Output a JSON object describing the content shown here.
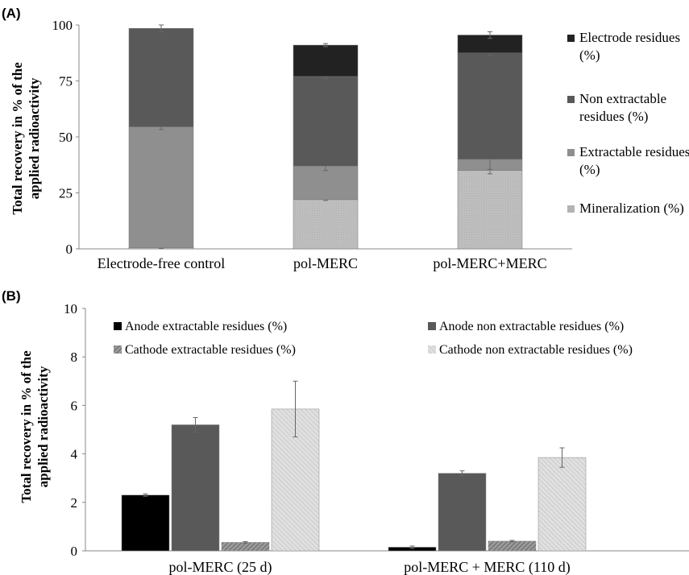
{
  "chart_data": [
    {
      "panel": "(A)",
      "type": "bar",
      "stacked": true,
      "ylabel_lines": [
        "Total recovery  in % of the",
        "applied radioactivity"
      ],
      "ylim": [
        0,
        100
      ],
      "yticks": [
        "0",
        "25",
        "50",
        "75",
        "100"
      ],
      "ytick_values": [
        0,
        25,
        50,
        75,
        100
      ],
      "categories": [
        "Electrode-free control",
        "pol-MERC",
        "pol-MERC+MERC"
      ],
      "series": [
        {
          "name": "Mineralization (%)",
          "values": [
            0.5,
            22,
            35
          ],
          "errors": [
            0.3,
            0.4,
            1.5
          ],
          "color": "#bdbdbd",
          "pattern": "dots"
        },
        {
          "name": "Extractable residues (%)",
          "values": [
            54,
            15,
            5
          ],
          "errors": [
            1.2,
            2,
            4.5
          ],
          "color": "#8f8f8f",
          "pattern": "none"
        },
        {
          "name": "Non extractable residues (%)",
          "values": [
            44,
            40,
            47.5
          ],
          "errors": [
            1.5,
            1,
            1
          ],
          "color": "#595959",
          "pattern": "none"
        },
        {
          "name": "Electrode residues (%)",
          "values": [
            0,
            14,
            8
          ],
          "errors": [
            0,
            0.7,
            1.5
          ],
          "color": "#222222",
          "pattern": "none"
        }
      ],
      "legend": [
        {
          "lines": [
            "Electrode residues",
            "(%)"
          ],
          "color": "#222222"
        },
        {
          "lines": [
            "Non extractable",
            "residues (%)"
          ],
          "color": "#595959"
        },
        {
          "lines": [
            "Extractable residues",
            "(%)"
          ],
          "color": "#8f8f8f"
        },
        {
          "lines": [
            "Mineralization (%)"
          ],
          "color": "#b3b3b3"
        }
      ],
      "legend_position": "right",
      "grid": false
    },
    {
      "panel": "(B)",
      "type": "bar",
      "stacked": false,
      "ylabel_lines": [
        "Total recovery  in % of the",
        "applied radioactivity"
      ],
      "ylim": [
        0,
        10
      ],
      "yticks": [
        "0",
        "2",
        "4",
        "6",
        "8",
        "10"
      ],
      "ytick_values": [
        0,
        2,
        4,
        6,
        8,
        10
      ],
      "categories": [
        "pol-MERC (25 d)",
        "pol-MERC + MERC (110 d)"
      ],
      "series": [
        {
          "name": "Anode extractable residues (%)",
          "values": [
            2.3,
            0.15
          ],
          "errors": [
            0.05,
            0.05
          ],
          "color": "#000000",
          "pattern": "none"
        },
        {
          "name": "Anode non extractable residues (%)",
          "values": [
            5.2,
            3.2
          ],
          "errors": [
            0.3,
            0.1
          ],
          "color": "#595959",
          "pattern": "none"
        },
        {
          "name": "Cathode extractable residues (%)",
          "values": [
            0.35,
            0.4
          ],
          "errors": [
            0.03,
            0.03
          ],
          "color": "#8a8a8a",
          "pattern": "hatch"
        },
        {
          "name": "Cathode non extractable residues (%)",
          "values": [
            5.85,
            3.85
          ],
          "errors": [
            1.15,
            0.4
          ],
          "color": "#d9d9d9",
          "pattern": "lighthatch"
        }
      ],
      "legend_position": "top",
      "grid": false
    }
  ]
}
